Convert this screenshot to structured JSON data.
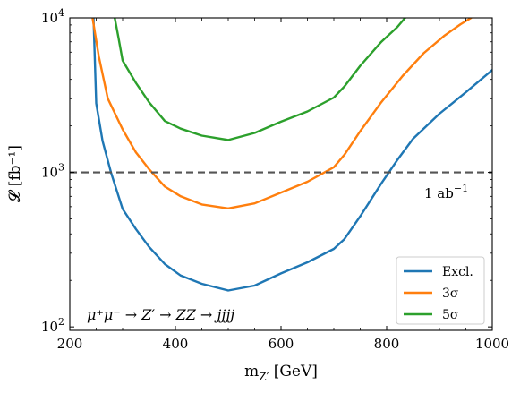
{
  "chart_data": {
    "type": "line",
    "xlabel": "m_{Z'} [GeV]",
    "ylabel": "𝓛 [fb⁻¹]",
    "xlim": [
      200,
      1000
    ],
    "ylim": [
      95,
      10000
    ],
    "yscale": "log",
    "x_ticks": [
      {
        "value": 200,
        "label": "200"
      },
      {
        "value": 400,
        "label": "400"
      },
      {
        "value": 600,
        "label": "600"
      },
      {
        "value": 800,
        "label": "800"
      },
      {
        "value": 1000,
        "label": "1000"
      }
    ],
    "y_ticks": [
      {
        "value": 100,
        "base": "10",
        "exp": "2"
      },
      {
        "value": 1000,
        "base": "10",
        "exp": "3"
      },
      {
        "value": 10000,
        "base": "10",
        "exp": "4"
      }
    ],
    "reference_line": {
      "y": 1000,
      "label": "1 ab",
      "label_exp": "−1",
      "color": "#555555",
      "style": "dashed"
    },
    "annotation": "μ⁺μ⁻ → Z′ → ZZ → jjjj",
    "legend": {
      "position": "bottom-right"
    },
    "grid": false,
    "series": [
      {
        "name": "Excl.",
        "color": "#1f77b4",
        "points": [
          [
            245,
            10000
          ],
          [
            250,
            2800
          ],
          [
            262,
            1600
          ],
          [
            278,
            1000
          ],
          [
            300,
            580
          ],
          [
            325,
            430
          ],
          [
            350,
            330
          ],
          [
            380,
            255
          ],
          [
            410,
            215
          ],
          [
            450,
            190
          ],
          [
            500,
            172
          ],
          [
            550,
            185
          ],
          [
            600,
            222
          ],
          [
            650,
            262
          ],
          [
            700,
            320
          ],
          [
            720,
            370
          ],
          [
            750,
            520
          ],
          [
            790,
            850
          ],
          [
            820,
            1200
          ],
          [
            850,
            1650
          ],
          [
            900,
            2400
          ],
          [
            950,
            3300
          ],
          [
            1000,
            4600
          ]
        ]
      },
      {
        "name": "3σ",
        "color": "#ff7f0e",
        "points": [
          [
            243,
            10000
          ],
          [
            255,
            5600
          ],
          [
            272,
            3000
          ],
          [
            300,
            1900
          ],
          [
            325,
            1350
          ],
          [
            350,
            1050
          ],
          [
            380,
            810
          ],
          [
            410,
            700
          ],
          [
            450,
            620
          ],
          [
            500,
            585
          ],
          [
            550,
            630
          ],
          [
            600,
            740
          ],
          [
            650,
            870
          ],
          [
            700,
            1080
          ],
          [
            720,
            1300
          ],
          [
            750,
            1850
          ],
          [
            790,
            2850
          ],
          [
            830,
            4200
          ],
          [
            870,
            5900
          ],
          [
            910,
            7700
          ],
          [
            940,
            9100
          ],
          [
            960,
            10000
          ]
        ]
      },
      {
        "name": "5σ",
        "color": "#2ca02c",
        "points": [
          [
            285,
            10000
          ],
          [
            292,
            7500
          ],
          [
            300,
            5300
          ],
          [
            325,
            3800
          ],
          [
            350,
            2850
          ],
          [
            380,
            2150
          ],
          [
            410,
            1920
          ],
          [
            450,
            1730
          ],
          [
            500,
            1620
          ],
          [
            550,
            1800
          ],
          [
            600,
            2130
          ],
          [
            650,
            2480
          ],
          [
            700,
            3050
          ],
          [
            720,
            3600
          ],
          [
            750,
            4900
          ],
          [
            790,
            7000
          ],
          [
            820,
            8700
          ],
          [
            835,
            10000
          ]
        ]
      }
    ]
  }
}
